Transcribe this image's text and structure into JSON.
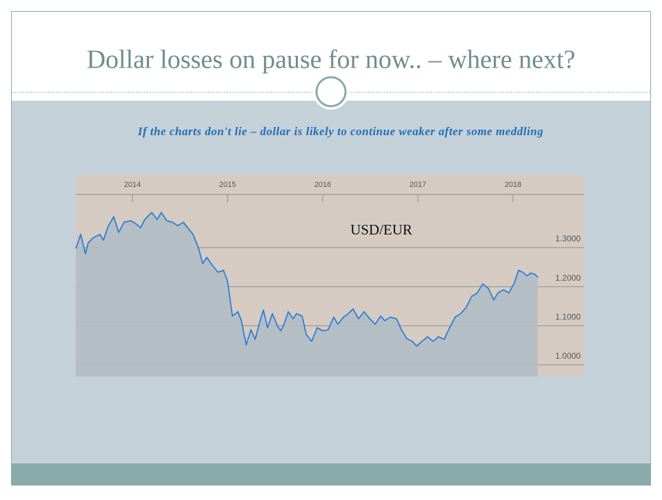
{
  "chart_data": {
    "type": "line",
    "title": "Dollar losses on pause for now.. – where next?",
    "subtitle": "If the charts don't lie – dollar is likely to continue weaker after some meddling",
    "x": [
      2013.406,
      2013.457,
      2013.507,
      2013.536,
      2013.587,
      2013.659,
      2013.696,
      2013.746,
      2013.804,
      2013.855,
      2013.913,
      2013.986,
      2014.043,
      2014.087,
      2014.13,
      2014.203,
      2014.261,
      2014.304,
      2014.362,
      2014.42,
      2014.478,
      2014.536,
      2014.58,
      2014.638,
      2014.696,
      2014.739,
      2014.783,
      2014.841,
      2014.899,
      2014.957,
      2015.0,
      2015.051,
      2015.109,
      2015.145,
      2015.196,
      2015.246,
      2015.29,
      2015.348,
      2015.377,
      2015.42,
      2015.471,
      2015.522,
      2015.558,
      2015.594,
      2015.638,
      2015.688,
      2015.725,
      2015.783,
      2015.826,
      2015.884,
      2015.942,
      2016.0,
      2016.058,
      2016.116,
      2016.159,
      2016.217,
      2016.268,
      2016.319,
      2016.377,
      2016.435,
      2016.493,
      2016.551,
      2016.609,
      2016.652,
      2016.71,
      2016.775,
      2016.826,
      2016.884,
      2016.942,
      2016.986,
      2017.043,
      2017.101,
      2017.159,
      2017.217,
      2017.275,
      2017.333,
      2017.391,
      2017.449,
      2017.507,
      2017.565,
      2017.623,
      2017.681,
      2017.739,
      2017.797,
      2017.841,
      2017.899,
      2017.957,
      2018.014,
      2018.058,
      2018.101,
      2018.145,
      2018.188,
      2018.232,
      2018.261
    ],
    "series": [
      {
        "name": "USD/EUR",
        "color": "#2b7fd4",
        "values": [
          1.298,
          1.334,
          1.284,
          1.312,
          1.325,
          1.334,
          1.319,
          1.355,
          1.379,
          1.339,
          1.365,
          1.369,
          1.36,
          1.351,
          1.372,
          1.39,
          1.372,
          1.39,
          1.369,
          1.365,
          1.356,
          1.365,
          1.351,
          1.334,
          1.298,
          1.259,
          1.275,
          1.254,
          1.237,
          1.242,
          1.214,
          1.125,
          1.136,
          1.113,
          1.051,
          1.09,
          1.065,
          1.118,
          1.14,
          1.095,
          1.131,
          1.101,
          1.087,
          1.104,
          1.136,
          1.118,
          1.131,
          1.125,
          1.078,
          1.06,
          1.095,
          1.087,
          1.09,
          1.122,
          1.104,
          1.122,
          1.131,
          1.143,
          1.118,
          1.136,
          1.118,
          1.104,
          1.125,
          1.113,
          1.122,
          1.118,
          1.09,
          1.067,
          1.06,
          1.048,
          1.06,
          1.072,
          1.06,
          1.072,
          1.065,
          1.095,
          1.122,
          1.131,
          1.147,
          1.175,
          1.184,
          1.207,
          1.196,
          1.166,
          1.184,
          1.192,
          1.184,
          1.21,
          1.242,
          1.237,
          1.228,
          1.235,
          1.231,
          1.224
        ]
      }
    ],
    "xlim": [
      2013.406,
      2018.746
    ],
    "xticks": [
      2014,
      2015,
      2016,
      2017,
      2018
    ],
    "ylim": [
      0.97,
      1.436
    ],
    "yticks": [
      {
        "value": 1.0,
        "label": "1.0000"
      },
      {
        "value": 1.1,
        "label": "1.1000"
      },
      {
        "value": 1.2,
        "label": "1.2000"
      },
      {
        "value": 1.3,
        "label": "1.3000"
      }
    ],
    "grid": true
  }
}
